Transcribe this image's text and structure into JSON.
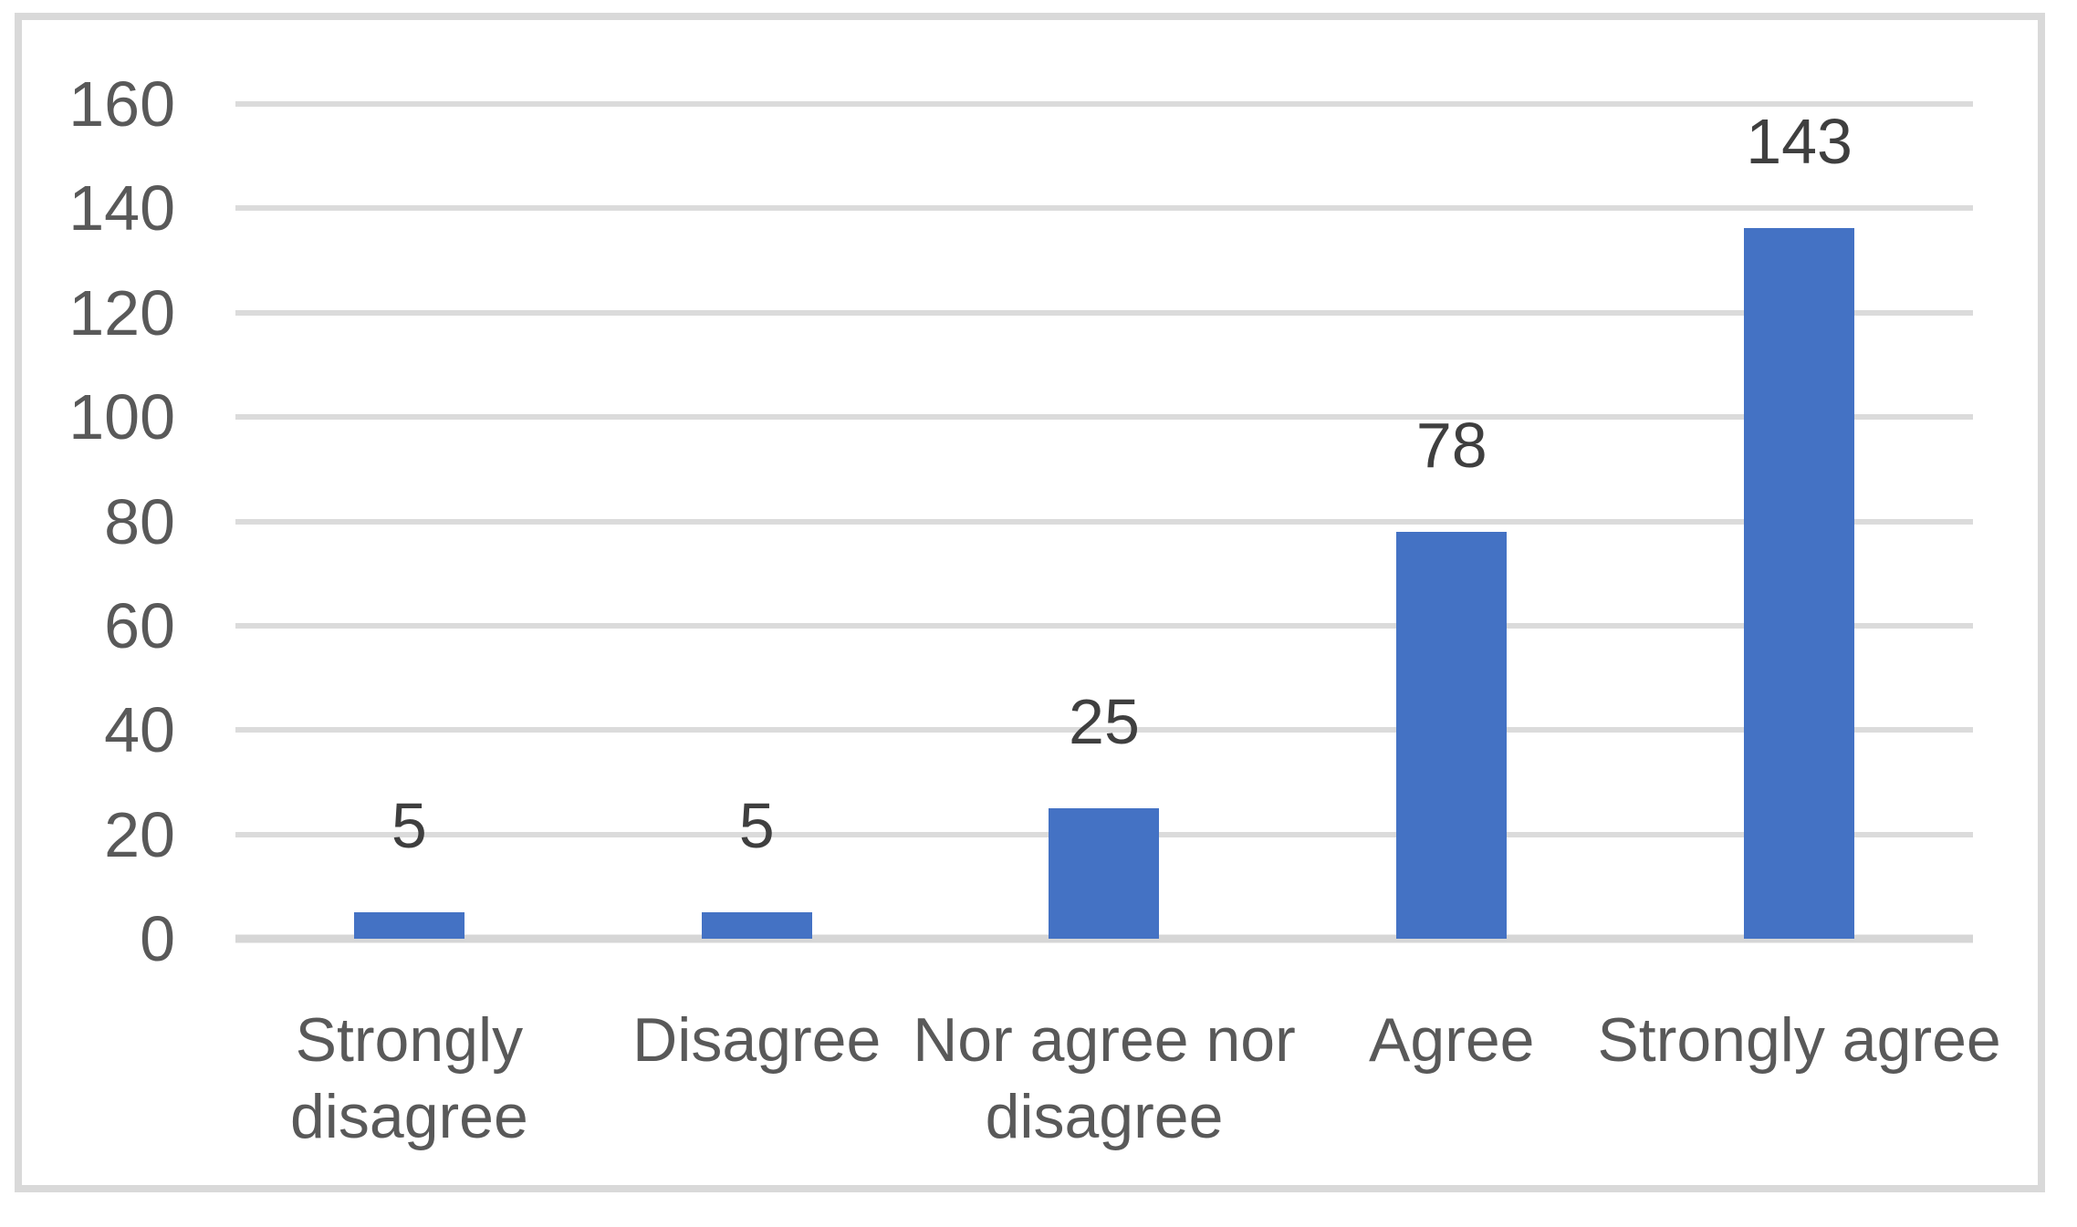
{
  "chart_data": {
    "type": "bar",
    "title": "",
    "xlabel": "",
    "ylabel": "",
    "categories": [
      "Strongly disagree",
      "Disagree",
      "Nor agree nor disagree",
      "Agree",
      "Strongly agree"
    ],
    "values": [
      5,
      5,
      25,
      78,
      143
    ],
    "ylim": [
      0,
      160
    ],
    "ytick_interval": 20,
    "yticks": [
      "160",
      "140",
      "120",
      "100",
      "80",
      "60",
      "40",
      "20",
      "0"
    ],
    "grid": "horizontal-on",
    "legend": "none",
    "data_labels_position": "outside-end",
    "bar_color": "#4472c4",
    "gridline_color": "#dbdbdb",
    "axis_line_color": "#d6d6d6",
    "frame_border_color": "#d9d9d9",
    "tick_label_color": "#595959",
    "category_label_color": "#595959",
    "data_label_color": "#3f3f3f",
    "background_color": "#ffffff"
  }
}
